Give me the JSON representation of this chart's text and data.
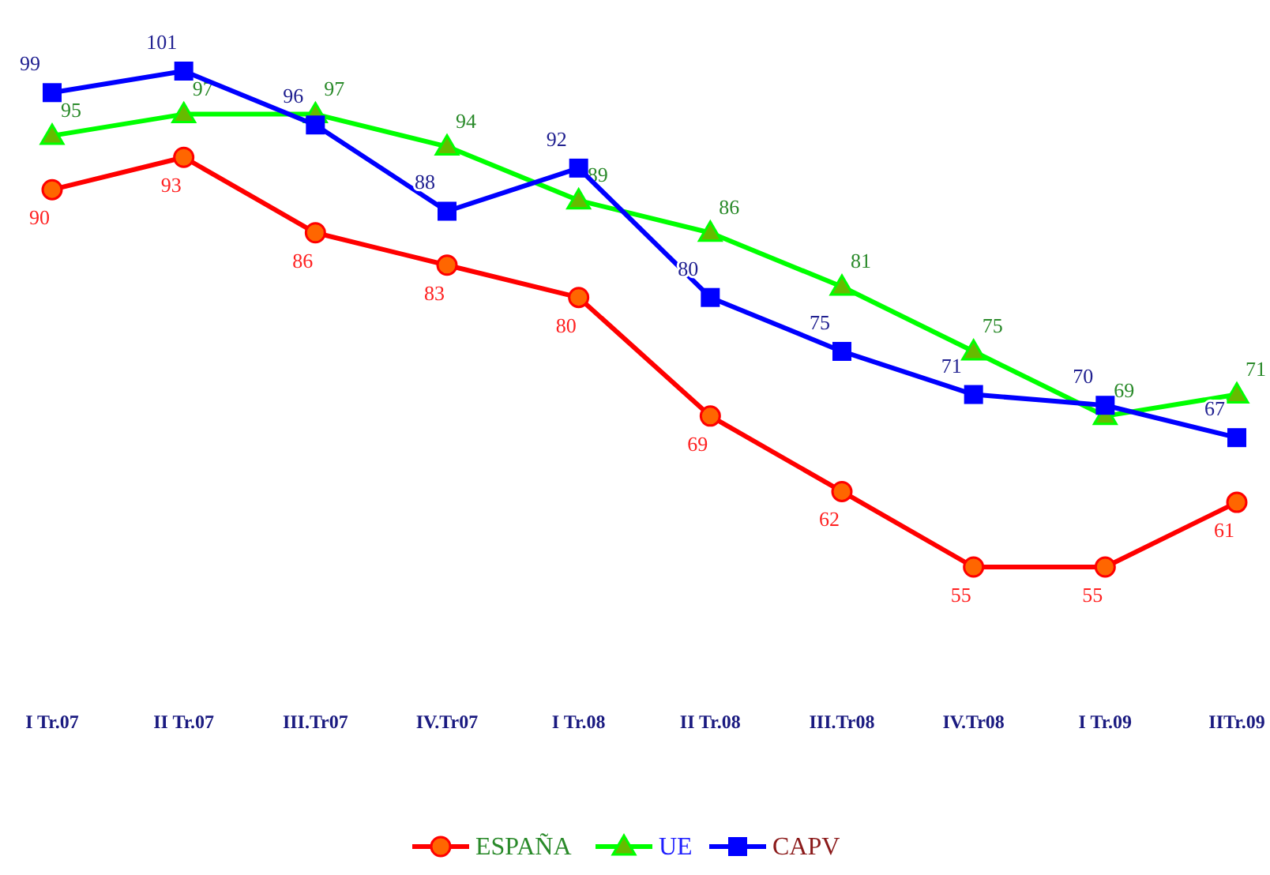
{
  "chart_data": {
    "type": "line",
    "categories": [
      "I Tr.07",
      "II Tr.07",
      "III.Tr07",
      "IV.Tr07",
      "I Tr.08",
      "II Tr.08",
      "III.Tr08",
      "IV.Tr08",
      "I Tr.09",
      "IITr.09"
    ],
    "series": [
      {
        "name": "ESPAÑA",
        "color": "#ff0000",
        "marker": "circle",
        "values": [
          90,
          93,
          86,
          83,
          80,
          69,
          62,
          55,
          55,
          61
        ]
      },
      {
        "name": "UE",
        "color": "#00ff00",
        "marker": "triangle",
        "values": [
          95,
          97,
          97,
          94,
          89,
          86,
          81,
          75,
          69,
          71
        ]
      },
      {
        "name": "CAPV",
        "color": "#0000ff",
        "marker": "square",
        "values": [
          99,
          101,
          96,
          88,
          92,
          80,
          75,
          71,
          70,
          67
        ]
      }
    ],
    "data_labels": true,
    "legend": "bottom",
    "grid": false,
    "line_style": "solid"
  }
}
